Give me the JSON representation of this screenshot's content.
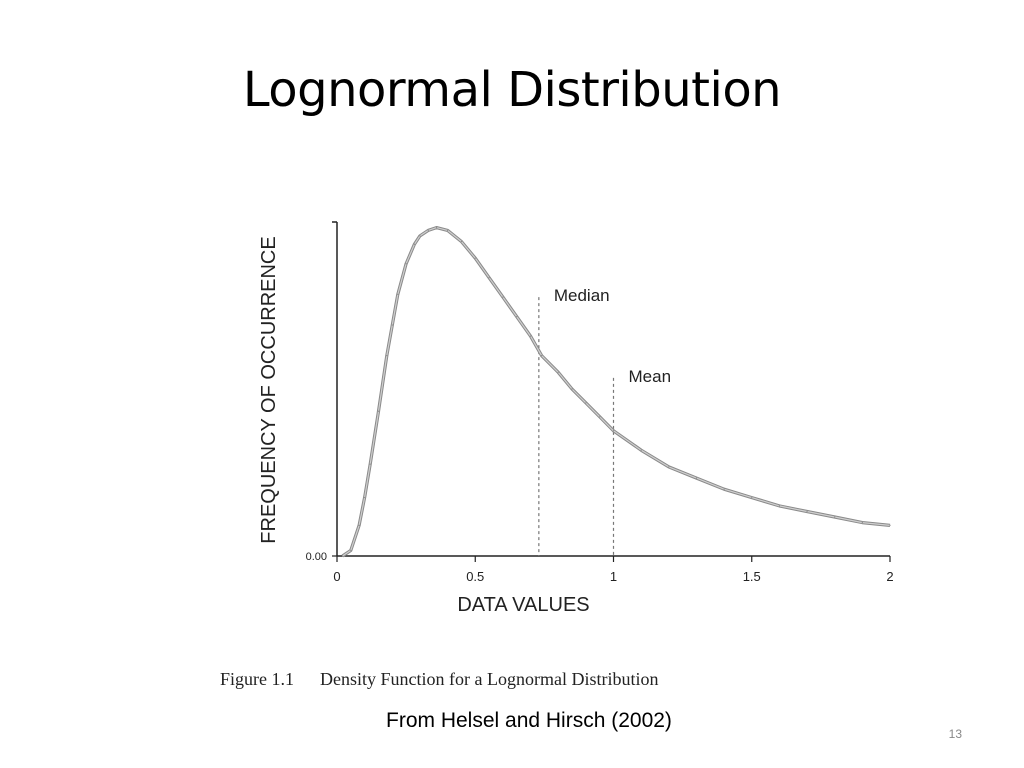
{
  "slide": {
    "title": "Lognormal Distribution",
    "source_note": "From Helsel and Hirsch (2002)",
    "page_number": "13"
  },
  "figure": {
    "number": "Figure 1.1",
    "caption": "Density Function for a Lognormal Distribution"
  },
  "chart_data": {
    "type": "line",
    "xlabel": "DATA VALUES",
    "ylabel": "FREQUENCY OF OCCURRENCE",
    "xlim": [
      0,
      2
    ],
    "ylim": [
      0,
      1.2
    ],
    "x_ticks": [
      0,
      0.5,
      1,
      1.5,
      2
    ],
    "x_tick_labels": [
      "0",
      "0.5",
      "1",
      "1.5",
      "2"
    ],
    "y_tick_labels": [
      "0.00"
    ],
    "grid": false,
    "series": [
      {
        "x": [
          0.02,
          0.05,
          0.08,
          0.1,
          0.12,
          0.15,
          0.18,
          0.2,
          0.22,
          0.25,
          0.28,
          0.3,
          0.33,
          0.36,
          0.4,
          0.45,
          0.5,
          0.55,
          0.6,
          0.65,
          0.7,
          0.74,
          0.8,
          0.85,
          0.9,
          0.95,
          1.0,
          1.1,
          1.2,
          1.3,
          1.4,
          1.5,
          1.6,
          1.7,
          1.8,
          1.9,
          2.0
        ],
        "y": [
          0.0,
          0.02,
          0.11,
          0.21,
          0.33,
          0.52,
          0.72,
          0.83,
          0.94,
          1.05,
          1.12,
          1.15,
          1.17,
          1.18,
          1.17,
          1.13,
          1.07,
          1.0,
          0.93,
          0.86,
          0.79,
          0.72,
          0.66,
          0.6,
          0.55,
          0.5,
          0.45,
          0.38,
          0.32,
          0.28,
          0.24,
          0.21,
          0.18,
          0.16,
          0.14,
          0.12,
          0.11
        ]
      }
    ],
    "annotations": [
      {
        "label": "Median",
        "x": 0.73,
        "y_top": 0.93
      },
      {
        "label": "Mean",
        "x": 1.0,
        "y_top": 0.64
      }
    ]
  }
}
